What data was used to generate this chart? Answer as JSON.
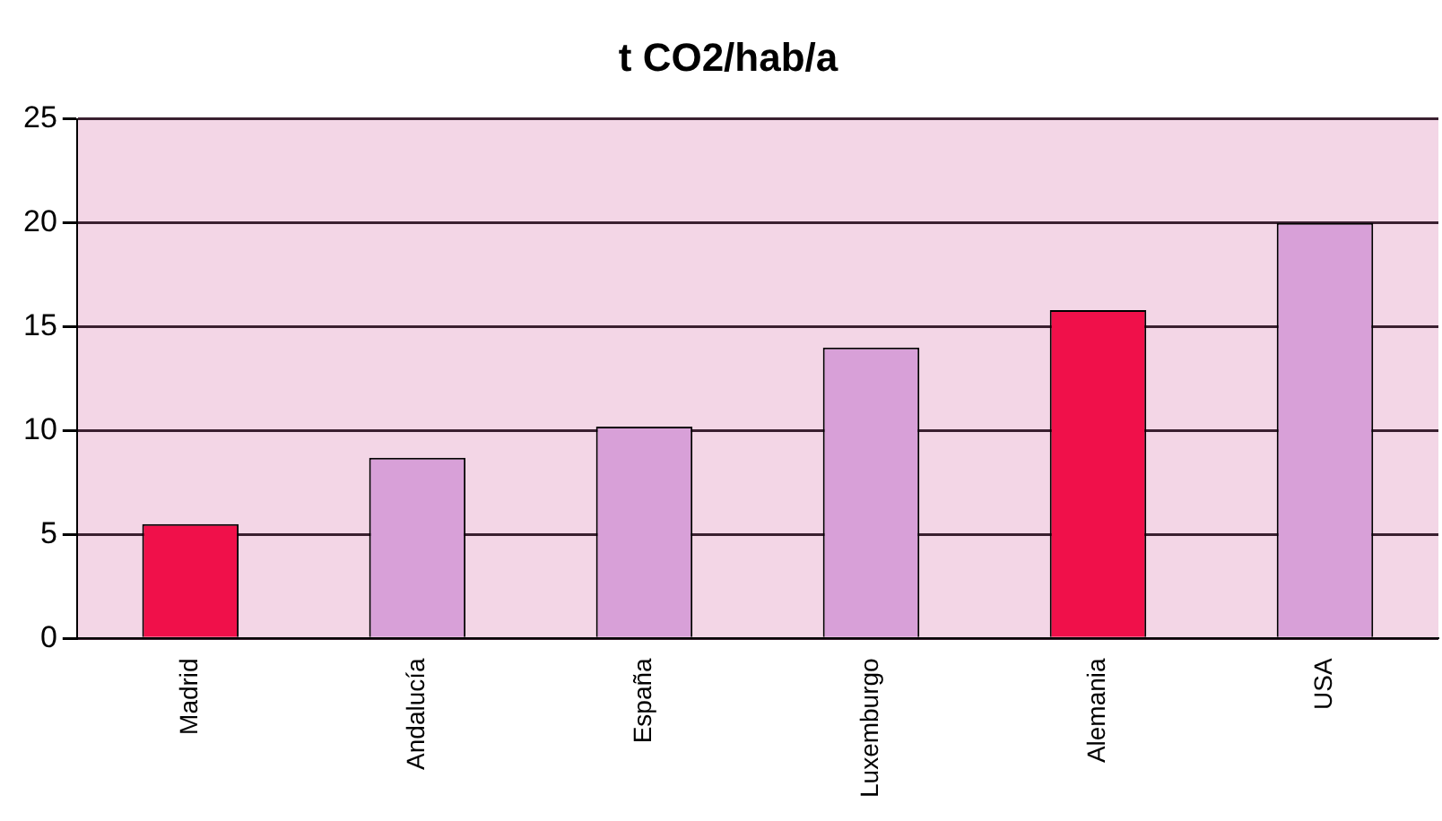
{
  "chart_data": {
    "type": "bar",
    "title": "t CO2/hab/a",
    "categories": [
      "Madrid",
      "Andalucía",
      "España",
      "Luxemburgo",
      "Alemania",
      "USA"
    ],
    "values": [
      5.5,
      8.7,
      10.2,
      14,
      15.8,
      20
    ],
    "colors": [
      "#f0104a",
      "#d8a0d8",
      "#d8a0d8",
      "#d8a0d8",
      "#f0104a",
      "#d8a0d8"
    ],
    "ylim": [
      0,
      25
    ],
    "yticks": [
      0,
      5,
      10,
      15,
      20,
      25
    ],
    "grid": "y",
    "legend": false
  }
}
